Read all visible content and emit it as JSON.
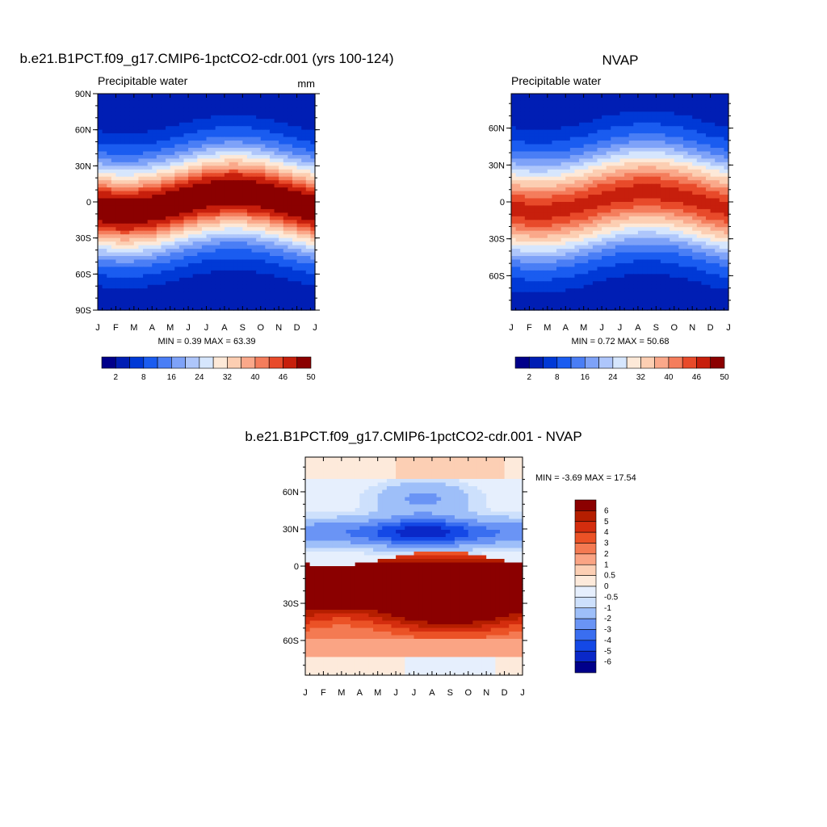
{
  "chart_data": [
    {
      "type": "heatmap",
      "id": "p1",
      "title": "b.e21.B1PCT.f09_g17.CMIP6-1pctCO2-cdr.001 (yrs 100-124)",
      "subtitle_left": "Precipitable water",
      "units": "mm",
      "x_ticks": [
        "J",
        "F",
        "M",
        "A",
        "M",
        "J",
        "J",
        "A",
        "S",
        "O",
        "N",
        "D",
        "J"
      ],
      "y_ticks": [
        "90N",
        "60N",
        "30N",
        "0",
        "30S",
        "60S",
        "90S"
      ],
      "ylim": [
        -90,
        90
      ],
      "stats": "MIN =   0.39 MAX =  63.39",
      "levels": [
        2,
        5,
        8,
        12,
        16,
        20,
        24,
        28,
        32,
        36,
        40,
        43,
        46,
        50
      ],
      "colorbar_labels": [
        "2",
        "8",
        "16",
        "24",
        "32",
        "40",
        "46",
        "50"
      ],
      "palette": [
        "#00008a",
        "#001eb4",
        "#0039d6",
        "#1a5cf0",
        "#4a7ef5",
        "#7ea2f8",
        "#aec6fb",
        "#d6e6fd",
        "#fde9d8",
        "#fcceb2",
        "#faa88a",
        "#f47d5c",
        "#e84a2a",
        "#c71f0c",
        "#8b0000"
      ],
      "field": {
        "base": 3,
        "amp": 51,
        "width": 36,
        "offset": 0,
        "shift": 8,
        "hemi_bias": 0,
        "lat_min": -90,
        "lat_max": 90
      }
    },
    {
      "type": "heatmap",
      "id": "p2",
      "title": "NVAP",
      "subtitle_left": "Precipitable water",
      "units": "",
      "x_ticks": [
        "J",
        "F",
        "M",
        "A",
        "M",
        "J",
        "J",
        "A",
        "S",
        "O",
        "N",
        "D",
        "J"
      ],
      "y_ticks": [
        "60N",
        "30N",
        "0",
        "30S",
        "60S"
      ],
      "ylim": [
        -88,
        88
      ],
      "stats": "MIN =   0.72 MAX =  50.68",
      "levels": [
        2,
        5,
        8,
        12,
        16,
        20,
        24,
        28,
        32,
        36,
        40,
        43,
        46,
        50
      ],
      "colorbar_labels": [
        "2",
        "8",
        "16",
        "24",
        "32",
        "40",
        "46",
        "50"
      ],
      "palette": [
        "#00008a",
        "#001eb4",
        "#0039d6",
        "#1a5cf0",
        "#4a7ef5",
        "#7ea2f8",
        "#aec6fb",
        "#d6e6fd",
        "#fde9d8",
        "#fcceb2",
        "#faa88a",
        "#f47d5c",
        "#e84a2a",
        "#c71f0c",
        "#8b0000"
      ],
      "field": {
        "base": 3,
        "amp": 44,
        "width": 38,
        "offset": 0,
        "shift": 8,
        "hemi_bias": 0,
        "lat_min": -88,
        "lat_max": 88
      }
    },
    {
      "type": "heatmap",
      "id": "p3",
      "title": "b.e21.B1PCT.f09_g17.CMIP6-1pctCO2-cdr.001 - NVAP",
      "subtitle_left": "",
      "units": "",
      "x_ticks": [
        "J",
        "F",
        "M",
        "A",
        "M",
        "J",
        "J",
        "A",
        "S",
        "O",
        "N",
        "D",
        "J"
      ],
      "y_ticks": [
        "60N",
        "30N",
        "0",
        "30S",
        "60S"
      ],
      "ylim": [
        -88,
        88
      ],
      "stats": "MIN =  -3.69 MAX =  17.54",
      "levels": [
        -6,
        -5,
        -4,
        -3,
        -2,
        -1,
        -0.5,
        0,
        0.5,
        1,
        2,
        3,
        4,
        5,
        6
      ],
      "colorbar_labels": [
        "6",
        "5",
        "4",
        "3",
        "2",
        "1",
        "0.5",
        "0",
        "-0.5",
        "-1",
        "-2",
        "-3",
        "-4",
        "-5",
        "-6"
      ],
      "palette": [
        "#00008a",
        "#0a28c8",
        "#1448e6",
        "#3a6ef0",
        "#6a94f5",
        "#9ebff9",
        "#cde0fc",
        "#e6effd",
        "#fdeadb",
        "#fccfb4",
        "#faa484",
        "#f47a52",
        "#eb5226",
        "#d42d0e",
        "#b51e00",
        "#8b0000"
      ],
      "field": {
        "lat_min": -88,
        "lat_max": 88
      }
    }
  ]
}
